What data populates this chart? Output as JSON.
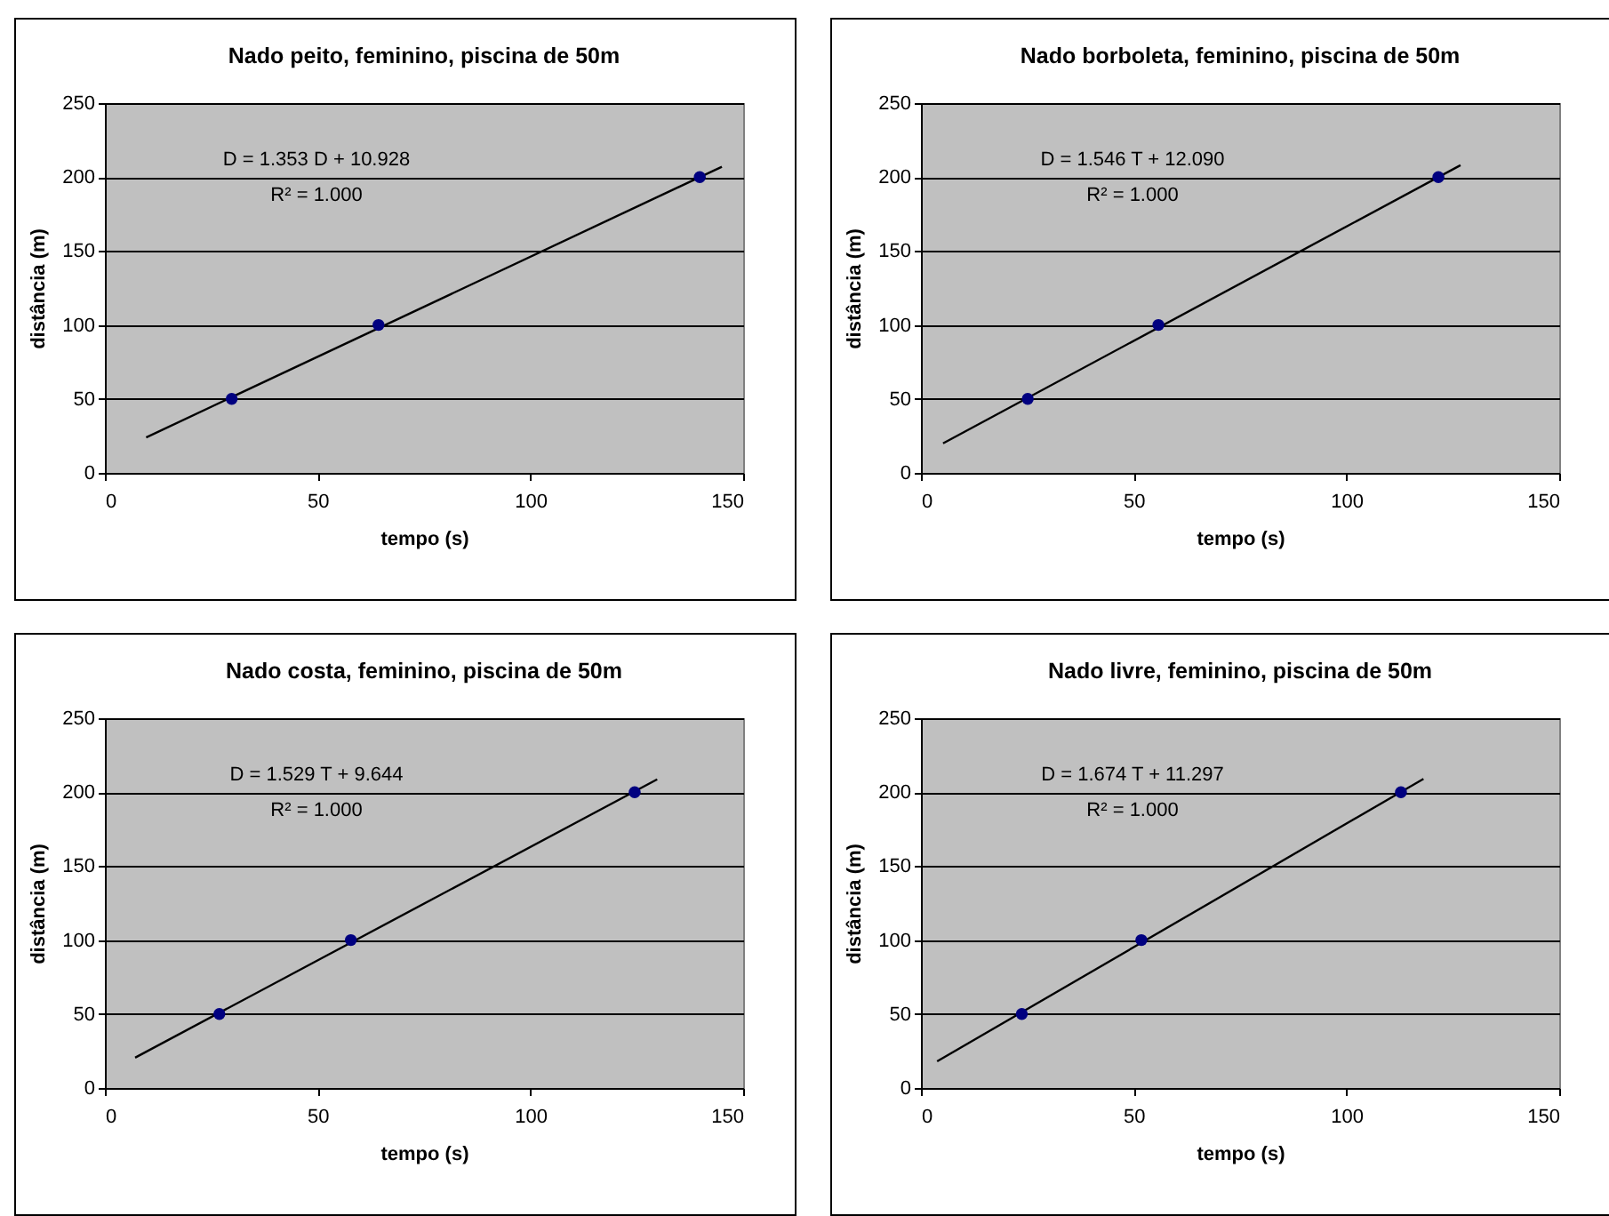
{
  "chart_data": [
    {
      "type": "scatter",
      "title": "Nado peito, feminino, piscina de 50m",
      "xlabel": "tempo (s)",
      "ylabel": "distância (m)",
      "xlim": [
        0,
        150
      ],
      "xticks": [
        0,
        50,
        100,
        150
      ],
      "ylim": [
        0,
        250
      ],
      "yticks": [
        0,
        50,
        100,
        150,
        200,
        250
      ],
      "grid": "y",
      "marker": "circle",
      "annotations": [
        "D = 1.353 D + 10.928",
        "R² = 1.000"
      ],
      "series": [
        {
          "color": "#000080",
          "x": [
            29.8,
            64.3,
            139.8
          ],
          "values": [
            50,
            100,
            200
          ]
        },
        {
          "type": "line",
          "color": "#000000",
          "marker": "none",
          "x": [
            9.7,
            145
          ],
          "values": [
            24,
            207
          ]
        }
      ]
    },
    {
      "type": "scatter",
      "title": "Nado borboleta, feminino, piscina de 50m",
      "xlabel": "tempo (s)",
      "ylabel": "distância (m)",
      "xlim": [
        0,
        150
      ],
      "xticks": [
        0,
        50,
        100,
        150
      ],
      "ylim": [
        0,
        250
      ],
      "yticks": [
        0,
        50,
        100,
        150,
        200,
        250
      ],
      "grid": "y",
      "marker": "circle",
      "annotations": [
        "D = 1.546 T + 12.090",
        "R² = 1.000"
      ],
      "series": [
        {
          "color": "#000080",
          "x": [
            25.1,
            55.8,
            121.6
          ],
          "values": [
            50,
            100,
            200
          ]
        },
        {
          "type": "line",
          "color": "#000000",
          "marker": "none",
          "x": [
            5.2,
            126.8
          ],
          "values": [
            20,
            208
          ]
        }
      ]
    },
    {
      "type": "scatter",
      "title": "Nado costa, feminino, piscina de 50m",
      "xlabel": "tempo (s)",
      "ylabel": "distância (m)",
      "xlim": [
        0,
        150
      ],
      "xticks": [
        0,
        50,
        100,
        150
      ],
      "ylim": [
        0,
        250
      ],
      "yticks": [
        0,
        50,
        100,
        150,
        200,
        250
      ],
      "grid": "y",
      "marker": "circle",
      "annotations": [
        "D = 1.529 T + 9.644",
        "R² = 1.000"
      ],
      "series": [
        {
          "color": "#000080",
          "x": [
            26.9,
            57.8,
            124.5
          ],
          "values": [
            50,
            100,
            200
          ]
        },
        {
          "type": "line",
          "color": "#000000",
          "marker": "none",
          "x": [
            7.1,
            129.8
          ],
          "values": [
            20.5,
            208.7
          ]
        }
      ]
    },
    {
      "type": "scatter",
      "title": "Nado livre, feminino, piscina de 50m",
      "xlabel": "tempo (s)",
      "ylabel": "distância (m)",
      "xlim": [
        0,
        150
      ],
      "xticks": [
        0,
        50,
        100,
        150
      ],
      "ylim": [
        0,
        250
      ],
      "yticks": [
        0,
        50,
        100,
        150,
        200,
        250
      ],
      "grid": "y",
      "marker": "circle",
      "annotations": [
        "D = 1.674 T + 11.297",
        "R² = 1.000"
      ],
      "series": [
        {
          "color": "#000080",
          "x": [
            23.7,
            51.8,
            112.8
          ],
          "values": [
            50,
            100,
            200
          ]
        },
        {
          "type": "line",
          "color": "#000000",
          "marker": "none",
          "x": [
            3.8,
            118.1
          ],
          "values": [
            18,
            209
          ]
        }
      ]
    }
  ]
}
